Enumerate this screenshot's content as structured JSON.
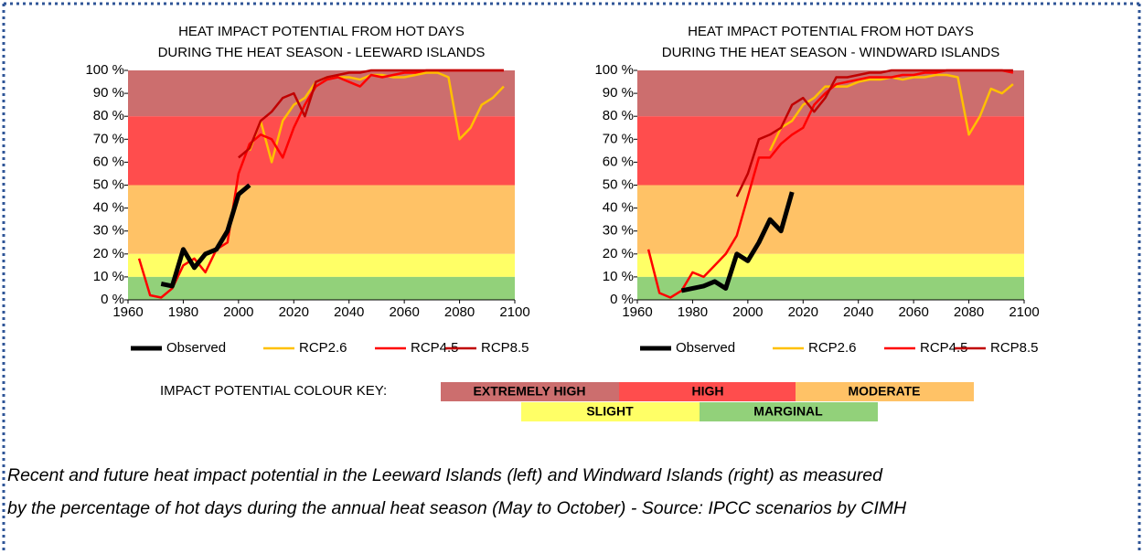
{
  "chart_data": [
    {
      "type": "line",
      "title": [
        "HEAT IMPACT POTENTIAL FROM HOT DAYS",
        "DURING THE HEAT SEASON - LEEWARD ISLANDS"
      ],
      "x": [
        1964,
        1968,
        1972,
        1976,
        1980,
        1984,
        1988,
        1992,
        1996,
        2000,
        2004,
        2008,
        2012,
        2016,
        2020,
        2024,
        2028,
        2032,
        2036,
        2040,
        2044,
        2048,
        2052,
        2056,
        2060,
        2064,
        2068,
        2072,
        2076,
        2080,
        2084,
        2088,
        2092,
        2096
      ],
      "series": [
        {
          "name": "Observed",
          "color": "#000000",
          "values": [
            null,
            null,
            7,
            6,
            22,
            14,
            20,
            22,
            30,
            46,
            50,
            null,
            null,
            null,
            null,
            null,
            null,
            null,
            null,
            null,
            null,
            null,
            null,
            null,
            null,
            null,
            null,
            null,
            null,
            null,
            null,
            null,
            null,
            null
          ]
        },
        {
          "name": "RCP2.6",
          "color": "#ffc000",
          "values": [
            null,
            null,
            null,
            null,
            null,
            null,
            null,
            null,
            null,
            null,
            65,
            78,
            60,
            78,
            85,
            88,
            95,
            97,
            97,
            97,
            96,
            98,
            98,
            97,
            97,
            98,
            99,
            99,
            97,
            70,
            75,
            85,
            88,
            93
          ]
        },
        {
          "name": "RCP4.5",
          "color": "#ff0000",
          "values": [
            18,
            2,
            1,
            5,
            15,
            18,
            12,
            22,
            25,
            55,
            68,
            72,
            70,
            62,
            75,
            85,
            93,
            96,
            97,
            95,
            93,
            98,
            97,
            98,
            99,
            99,
            100,
            100,
            100,
            100,
            100,
            100,
            100,
            100
          ]
        },
        {
          "name": "RCP8.5",
          "color": "#c00000",
          "values": [
            null,
            null,
            null,
            null,
            null,
            null,
            null,
            null,
            null,
            62,
            66,
            78,
            82,
            88,
            90,
            80,
            95,
            97,
            98,
            99,
            99,
            100,
            100,
            100,
            100,
            100,
            100,
            100,
            100,
            100,
            100,
            100,
            100,
            100
          ]
        }
      ],
      "xlim": [
        1960,
        2100
      ],
      "xticks": [
        1960,
        1980,
        2000,
        2020,
        2040,
        2060,
        2080,
        2100
      ],
      "ylim": [
        0,
        100
      ],
      "yticks": [
        {
          "value": 0,
          "label": "0 %"
        },
        {
          "value": 10,
          "label": "10 %"
        },
        {
          "value": 20,
          "label": "20 %"
        },
        {
          "value": 30,
          "label": "30 %"
        },
        {
          "value": 40,
          "label": "40 %"
        },
        {
          "value": 50,
          "label": "50 %"
        },
        {
          "value": 60,
          "label": "60 %"
        },
        {
          "value": 70,
          "label": "70 %"
        },
        {
          "value": 80,
          "label": "80 %"
        },
        {
          "value": 90,
          "label": "90 %"
        },
        {
          "value": 100,
          "label": "100 %"
        }
      ]
    },
    {
      "type": "line",
      "title": [
        "HEAT IMPACT POTENTIAL FROM HOT DAYS",
        "DURING THE HEAT SEASON - WINDWARD ISLANDS"
      ],
      "x": [
        1964,
        1968,
        1972,
        1976,
        1980,
        1984,
        1988,
        1992,
        1996,
        2000,
        2004,
        2008,
        2012,
        2016,
        2020,
        2024,
        2028,
        2032,
        2036,
        2040,
        2044,
        2048,
        2052,
        2056,
        2060,
        2064,
        2068,
        2072,
        2076,
        2080,
        2084,
        2088,
        2092,
        2096
      ],
      "series": [
        {
          "name": "Observed",
          "color": "#000000",
          "values": [
            null,
            null,
            null,
            4,
            5,
            6,
            8,
            5,
            20,
            17,
            25,
            35,
            30,
            47,
            null,
            null,
            null,
            null,
            null,
            null,
            null,
            null,
            null,
            null,
            null,
            null,
            null,
            null,
            null,
            null,
            null,
            null,
            null,
            null
          ]
        },
        {
          "name": "RCP2.6",
          "color": "#ffc000",
          "values": [
            null,
            null,
            null,
            null,
            null,
            null,
            null,
            null,
            null,
            null,
            null,
            65,
            75,
            78,
            85,
            88,
            93,
            93,
            93,
            95,
            96,
            96,
            97,
            96,
            97,
            97,
            98,
            98,
            97,
            72,
            80,
            92,
            90,
            94
          ]
        },
        {
          "name": "RCP4.5",
          "color": "#ff0000",
          "values": [
            22,
            3,
            1,
            4,
            12,
            10,
            15,
            20,
            28,
            45,
            62,
            62,
            68,
            72,
            75,
            85,
            90,
            94,
            95,
            96,
            97,
            97,
            97,
            98,
            98,
            99,
            99,
            100,
            100,
            100,
            100,
            100,
            100,
            99
          ]
        },
        {
          "name": "RCP8.5",
          "color": "#c00000",
          "values": [
            null,
            null,
            null,
            null,
            null,
            null,
            null,
            null,
            45,
            55,
            70,
            72,
            75,
            85,
            88,
            82,
            88,
            97,
            97,
            98,
            99,
            99,
            100,
            100,
            100,
            100,
            100,
            100,
            100,
            100,
            100,
            100,
            100,
            100
          ]
        }
      ],
      "xlim": [
        1960,
        2100
      ],
      "xticks": [
        1960,
        1980,
        2000,
        2020,
        2040,
        2060,
        2080,
        2100
      ],
      "ylim": [
        0,
        100
      ],
      "yticks": [
        {
          "value": 0,
          "label": "0 %"
        },
        {
          "value": 10,
          "label": "10 %"
        },
        {
          "value": 20,
          "label": "20 %"
        },
        {
          "value": 30,
          "label": "30 %"
        },
        {
          "value": 40,
          "label": "40 %"
        },
        {
          "value": 50,
          "label": "50 %"
        },
        {
          "value": 60,
          "label": "60 %"
        },
        {
          "value": 70,
          "label": "70 %"
        },
        {
          "value": 80,
          "label": "80 %"
        },
        {
          "value": 90,
          "label": "90 %"
        },
        {
          "value": 100,
          "label": "100 %"
        }
      ]
    }
  ],
  "colour_key": {
    "title": "IMPACT POTENTIAL COLOUR KEY:",
    "levels": [
      {
        "name": "EXTREMELY HIGH",
        "color": "#cc6e6e",
        "label_color": "#ffffff",
        "from": 80,
        "to": 100
      },
      {
        "name": "HIGH",
        "color": "#ff4d4d",
        "label_color": "#ff8080",
        "from": 50,
        "to": 80
      },
      {
        "name": "MODERATE",
        "color": "#ffc266",
        "label_color": "#7f5f20",
        "from": 20,
        "to": 50
      },
      {
        "name": "SLIGHT",
        "color": "#ffff66",
        "label_color": "#7f6f10",
        "from": 10,
        "to": 20
      },
      {
        "name": "MARGINAL",
        "color": "#92d17a",
        "label_color": "#4f6f40",
        "from": 0,
        "to": 10
      }
    ]
  },
  "caption": [
    "Recent and future heat impact potential in the Leeward Islands (left) and Windward Islands (right) as measured",
    "by the percentage of hot days during the annual heat season (May to October) - Source: IPCC scenarios by CIMH"
  ]
}
